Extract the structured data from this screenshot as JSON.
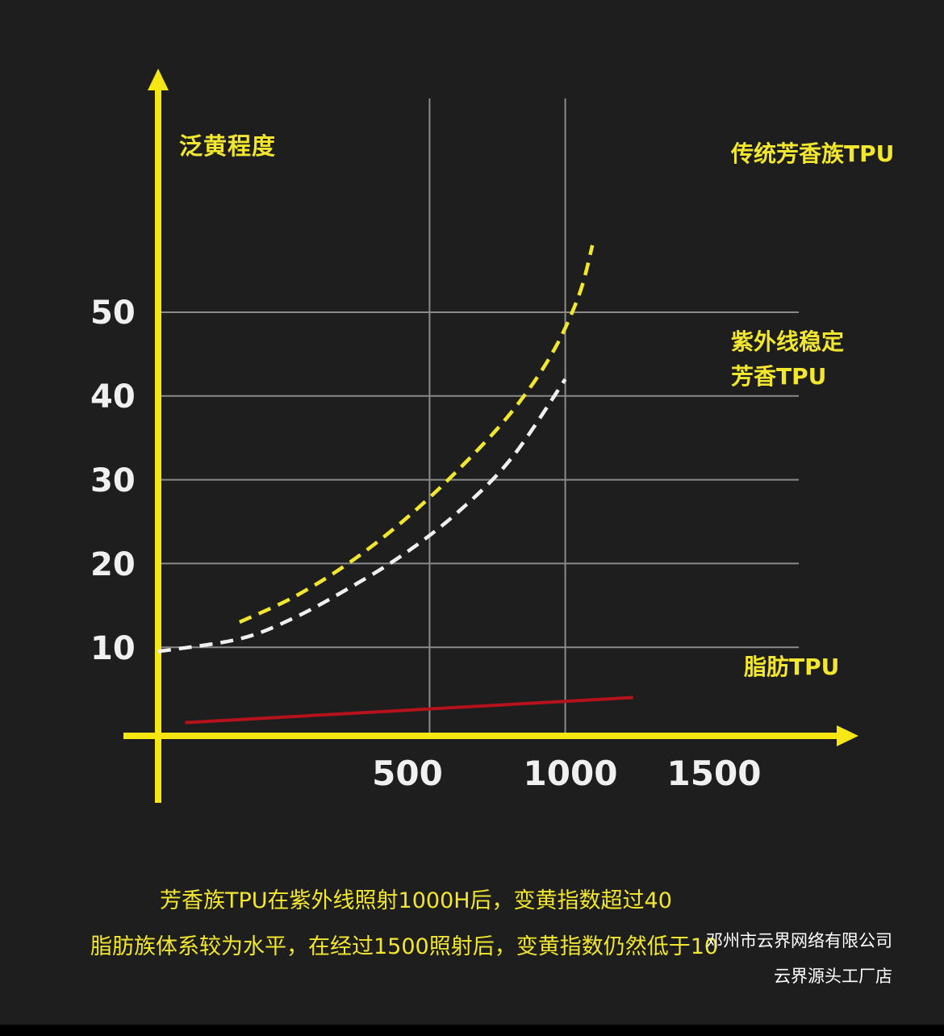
{
  "chart_data": {
    "type": "line",
    "ylabel": "泛黄程度",
    "xlabel": "",
    "xticks": [
      "500",
      "1000",
      "1500"
    ],
    "yticks": [
      "10",
      "20",
      "30",
      "40",
      "50"
    ],
    "xlim": [
      -20,
      2450
    ],
    "ylim": [
      0,
      60
    ],
    "grid_x": [
      1000,
      1500
    ],
    "grid_y": [
      10,
      20,
      30,
      40,
      50
    ],
    "series": [
      {
        "name": "传统芳香族TPU",
        "color": "#f2e72e",
        "style": "dashed",
        "x": [
          300,
          500,
          700,
          900,
          1100,
          1300,
          1450,
          1550,
          1600
        ],
        "y": [
          13,
          16,
          20,
          25,
          31,
          38,
          45,
          52,
          58
        ]
      },
      {
        "name": "紫外线稳定芳香TPU",
        "color": "#f0f0f0",
        "style": "dashed",
        "x": [
          0,
          300,
          500,
          700,
          900,
          1100,
          1300,
          1500
        ],
        "y": [
          9.5,
          11,
          13.5,
          17,
          21,
          26,
          32.5,
          42
        ]
      },
      {
        "name": "脂肪TPU",
        "color": "#b5121b",
        "style": "solid",
        "x": [
          100,
          1750
        ],
        "y": [
          1,
          4
        ]
      }
    ]
  },
  "series_labels": {
    "aromatic": "传统芳香族TPU",
    "uv_line1": "紫外线稳定",
    "uv_line2": "芳香TPU",
    "aliphatic": "脂肪TPU"
  },
  "caption": {
    "line1": "芳香族TPU在紫外线照射1000H后，变黄指数超过40",
    "line2": "脂肪族体系较为水平，在经过1500照射后，变黄指数仍然低于10"
  },
  "watermark": {
    "line1": "邓州市云界网络有限公司",
    "line2": "云界源头工厂店"
  },
  "colors": {
    "background": "#1e1e1e",
    "axis": "#f5e614",
    "grid": "#8a8a8a",
    "text_yellow": "#f2e72e",
    "tick_text": "#f0f0f0"
  }
}
